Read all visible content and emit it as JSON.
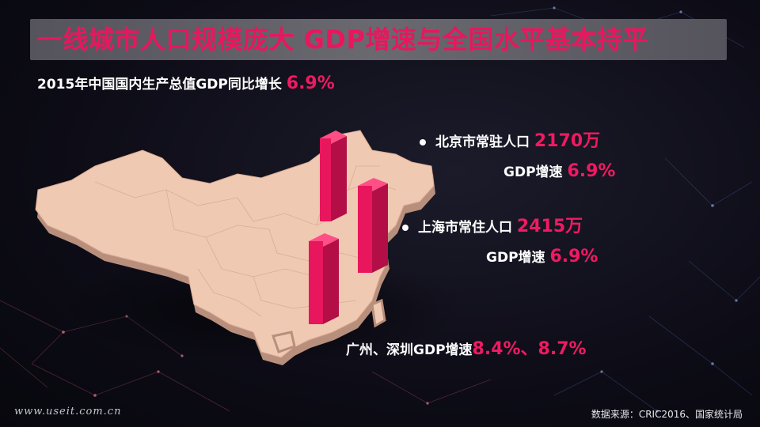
{
  "title": "一线城市人口规模庞大  GDP增速与全国水平基本持平",
  "subtitle": {
    "prefix": "2015年中国国内生产总值GDP同比增长",
    "value": "6.9%"
  },
  "beijing": {
    "pop_label": "北京市常驻人口",
    "pop_value": "2170万",
    "gdp_label": "GDP增速",
    "gdp_value": "6.9%"
  },
  "shanghai": {
    "pop_label": "上海市常住人口",
    "pop_value": "2415万",
    "gdp_label": "GDP增速",
    "gdp_value": "6.9%"
  },
  "guangzhou_shenzhen": {
    "label": "广州、深圳GDP增速",
    "value": "8.4%、8.7%"
  },
  "footer": {
    "website": "www.useit.com.cn",
    "source": "数据来源：CRIC2016、国家统计局"
  },
  "colors": {
    "accent": "#f01a62",
    "map_fill": "#f0c9b2",
    "title_bar": "#5f5e66"
  }
}
